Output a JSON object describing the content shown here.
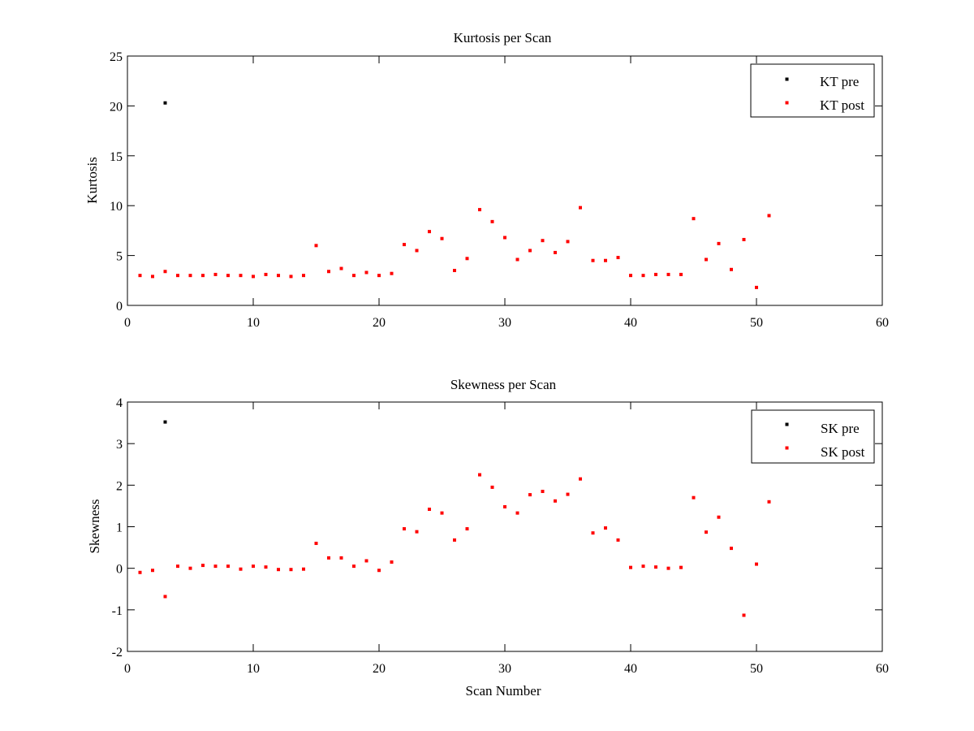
{
  "figure": {
    "background": "#ffffff"
  },
  "chart_data": [
    {
      "type": "scatter",
      "title": "Kurtosis per Scan",
      "xlabel": "",
      "ylabel": "Kurtosis",
      "xlim": [
        0,
        60
      ],
      "ylim": [
        0,
        25
      ],
      "xticks": [
        0,
        10,
        20,
        30,
        40,
        50,
        60
      ],
      "yticks": [
        0,
        5,
        10,
        15,
        20,
        25
      ],
      "grid": false,
      "legend_position": "top-right",
      "series": [
        {
          "name": "KT pre",
          "color": "#000000",
          "marker": "point",
          "points": [
            [
              3,
              20.3
            ]
          ]
        },
        {
          "name": "KT post",
          "color": "#ff0000",
          "marker": "point",
          "points": [
            [
              1,
              3.0
            ],
            [
              2,
              2.9
            ],
            [
              3,
              3.4
            ],
            [
              4,
              3.0
            ],
            [
              5,
              3.0
            ],
            [
              6,
              3.0
            ],
            [
              7,
              3.1
            ],
            [
              8,
              3.0
            ],
            [
              9,
              3.0
            ],
            [
              10,
              2.9
            ],
            [
              11,
              3.1
            ],
            [
              12,
              3.0
            ],
            [
              13,
              2.9
            ],
            [
              14,
              3.0
            ],
            [
              15,
              6.0
            ],
            [
              16,
              3.4
            ],
            [
              17,
              3.7
            ],
            [
              18,
              3.0
            ],
            [
              19,
              3.3
            ],
            [
              20,
              3.0
            ],
            [
              21,
              3.2
            ],
            [
              22,
              6.1
            ],
            [
              23,
              5.5
            ],
            [
              24,
              7.4
            ],
            [
              25,
              6.7
            ],
            [
              26,
              3.5
            ],
            [
              27,
              4.7
            ],
            [
              28,
              9.6
            ],
            [
              29,
              8.4
            ],
            [
              30,
              6.8
            ],
            [
              31,
              4.6
            ],
            [
              32,
              5.5
            ],
            [
              33,
              6.5
            ],
            [
              34,
              5.3
            ],
            [
              35,
              6.4
            ],
            [
              36,
              9.8
            ],
            [
              37,
              4.5
            ],
            [
              38,
              4.5
            ],
            [
              39,
              4.8
            ],
            [
              40,
              3.0
            ],
            [
              41,
              3.0
            ],
            [
              42,
              3.1
            ],
            [
              43,
              3.1
            ],
            [
              44,
              3.1
            ],
            [
              45,
              8.7
            ],
            [
              46,
              4.6
            ],
            [
              47,
              6.2
            ],
            [
              48,
              3.6
            ],
            [
              49,
              6.6
            ],
            [
              50,
              1.8
            ],
            [
              51,
              9.0
            ]
          ]
        }
      ]
    },
    {
      "type": "scatter",
      "title": "Skewness per Scan",
      "xlabel": "Scan Number",
      "ylabel": "Skewness",
      "xlim": [
        0,
        60
      ],
      "ylim": [
        -2,
        4
      ],
      "xticks": [
        0,
        10,
        20,
        30,
        40,
        50,
        60
      ],
      "yticks": [
        -2,
        -1,
        0,
        1,
        2,
        3,
        4
      ],
      "grid": false,
      "legend_position": "top-right",
      "series": [
        {
          "name": "SK pre",
          "color": "#000000",
          "marker": "point",
          "points": [
            [
              3,
              3.52
            ]
          ]
        },
        {
          "name": "SK post",
          "color": "#ff0000",
          "marker": "point",
          "points": [
            [
              1,
              -0.1
            ],
            [
              2,
              -0.05
            ],
            [
              3,
              -0.68
            ],
            [
              4,
              0.05
            ],
            [
              5,
              0.0
            ],
            [
              6,
              0.07
            ],
            [
              7,
              0.05
            ],
            [
              8,
              0.05
            ],
            [
              9,
              -0.02
            ],
            [
              10,
              0.05
            ],
            [
              11,
              0.03
            ],
            [
              12,
              -0.03
            ],
            [
              13,
              -0.03
            ],
            [
              14,
              -0.02
            ],
            [
              15,
              0.6
            ],
            [
              16,
              0.25
            ],
            [
              17,
              0.25
            ],
            [
              18,
              0.05
            ],
            [
              19,
              0.18
            ],
            [
              20,
              -0.05
            ],
            [
              21,
              0.15
            ],
            [
              22,
              0.95
            ],
            [
              23,
              0.88
            ],
            [
              24,
              1.42
            ],
            [
              25,
              1.33
            ],
            [
              26,
              0.68
            ],
            [
              27,
              0.95
            ],
            [
              28,
              2.25
            ],
            [
              29,
              1.95
            ],
            [
              30,
              1.48
            ],
            [
              31,
              1.33
            ],
            [
              32,
              1.77
            ],
            [
              33,
              1.85
            ],
            [
              34,
              1.62
            ],
            [
              35,
              1.78
            ],
            [
              36,
              2.15
            ],
            [
              37,
              0.85
            ],
            [
              38,
              0.97
            ],
            [
              39,
              0.68
            ],
            [
              40,
              0.02
            ],
            [
              41,
              0.05
            ],
            [
              42,
              0.03
            ],
            [
              43,
              0.0
            ],
            [
              44,
              0.02
            ],
            [
              45,
              1.7
            ],
            [
              46,
              0.87
            ],
            [
              47,
              1.23
            ],
            [
              48,
              0.48
            ],
            [
              49,
              -1.13
            ],
            [
              50,
              0.1
            ],
            [
              51,
              1.6
            ]
          ]
        }
      ]
    }
  ]
}
